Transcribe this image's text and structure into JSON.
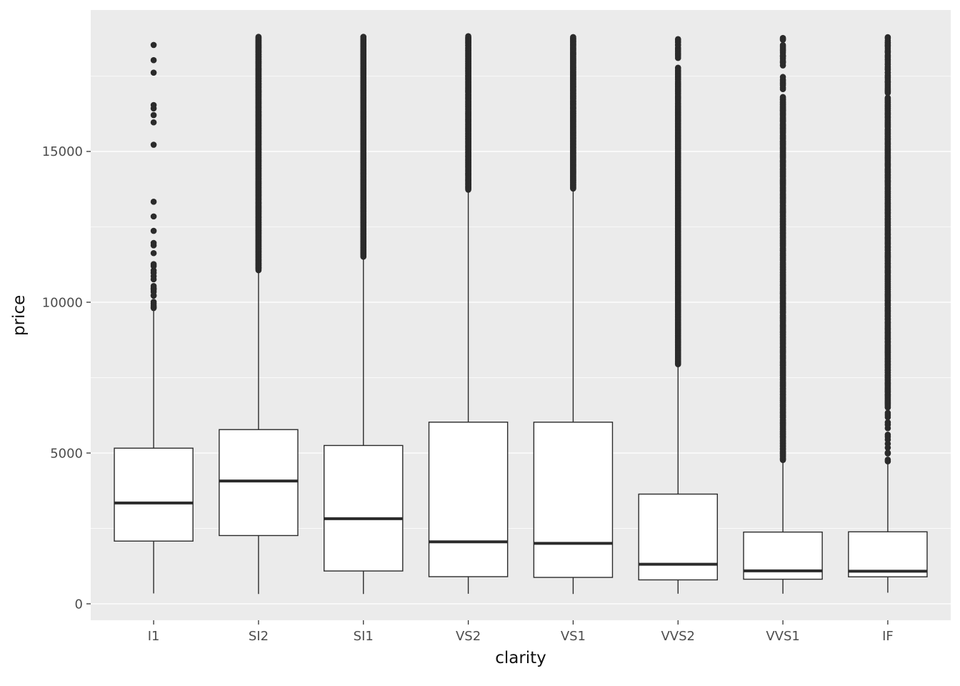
{
  "chart_data": {
    "type": "boxplot",
    "title": "",
    "xlabel": "clarity",
    "ylabel": "price",
    "categories": [
      "I1",
      "SI2",
      "SI1",
      "VS2",
      "VS1",
      "VVS2",
      "VVS1",
      "IF"
    ],
    "y_ticks": [
      0,
      5000,
      10000,
      15000
    ],
    "y_minor_ticks": [
      2500,
      7500,
      12500,
      17500
    ],
    "ylim": [
      -545,
      19690
    ],
    "grid": true,
    "legend": "none",
    "panel_bg": "#EBEBEB",
    "grid_color": "#FFFFFF",
    "box_fill": "#FFFFFF",
    "stroke_color": "#2B2B2B",
    "tick_label_color": "#4D4D4D",
    "series": [
      {
        "label": "I1",
        "whisker_low": 345,
        "q1": 2080,
        "median": 3344,
        "q3": 5161,
        "whisker_high": 9756,
        "outliers": [
          9808,
          9832,
          9881,
          9952,
          10011,
          10217,
          10227,
          10342,
          10418,
          10453,
          10470,
          10538,
          10761,
          10863,
          10973,
          11052,
          11197,
          11262,
          11628,
          11886,
          11965,
          12366,
          12845,
          13332,
          15223,
          15964,
          16205,
          16428,
          16538,
          17613,
          18026,
          18531
        ],
        "outlier_segments": []
      },
      {
        "label": "SI2",
        "whisker_low": 326,
        "q1": 2264,
        "median": 4072,
        "q3": 5777,
        "whisker_high": 11041,
        "outliers": [],
        "outlier_segments": [
          {
            "min": 11060,
            "max": 18804,
            "n": 380
          }
        ]
      },
      {
        "label": "SI1",
        "whisker_low": 326,
        "q1": 1089,
        "median": 2822,
        "q3": 5250,
        "whisker_high": 11489,
        "outliers": [],
        "outlier_segments": [
          {
            "min": 11500,
            "max": 18818,
            "n": 360
          }
        ]
      },
      {
        "label": "VS2",
        "whisker_low": 334,
        "q1": 900,
        "median": 2054,
        "q3": 6024,
        "whisker_high": 13710,
        "outliers": [],
        "outlier_segments": [
          {
            "min": 13730,
            "max": 18823,
            "n": 260
          }
        ]
      },
      {
        "label": "VS1",
        "whisker_low": 327,
        "q1": 876,
        "median": 2005,
        "q3": 6023,
        "whisker_high": 13744,
        "outliers": [],
        "outlier_segments": [
          {
            "min": 13760,
            "max": 18795,
            "n": 260
          }
        ]
      },
      {
        "label": "VVS2",
        "whisker_low": 336,
        "q1": 794,
        "median": 1311,
        "q3": 3638,
        "whisker_high": 7901,
        "outliers": [],
        "outlier_segments": [
          {
            "min": 7920,
            "max": 16600,
            "n": 300
          },
          {
            "min": 16650,
            "max": 17800,
            "n": 30
          },
          {
            "min": 18100,
            "max": 18768,
            "n": 14
          }
        ]
      },
      {
        "label": "VVS1",
        "whisker_low": 336,
        "q1": 816,
        "median": 1093,
        "q3": 2379,
        "whisker_high": 4721,
        "outliers": [],
        "outlier_segments": [
          {
            "min": 4740,
            "max": 16810,
            "n": 380
          },
          {
            "min": 17050,
            "max": 17480,
            "n": 8
          },
          {
            "min": 17850,
            "max": 18530,
            "n": 14
          },
          {
            "min": 18700,
            "max": 18777,
            "n": 3
          }
        ]
      },
      {
        "label": "IF",
        "whisker_low": 369,
        "q1": 895,
        "median": 1080,
        "q3": 2388,
        "whisker_high": 4626,
        "outliers": [],
        "outlier_segments": [
          {
            "min": 4640,
            "max": 6450,
            "n": 15
          },
          {
            "min": 6500,
            "max": 16800,
            "n": 300
          },
          {
            "min": 16900,
            "max": 18806,
            "n": 40
          }
        ]
      }
    ]
  }
}
